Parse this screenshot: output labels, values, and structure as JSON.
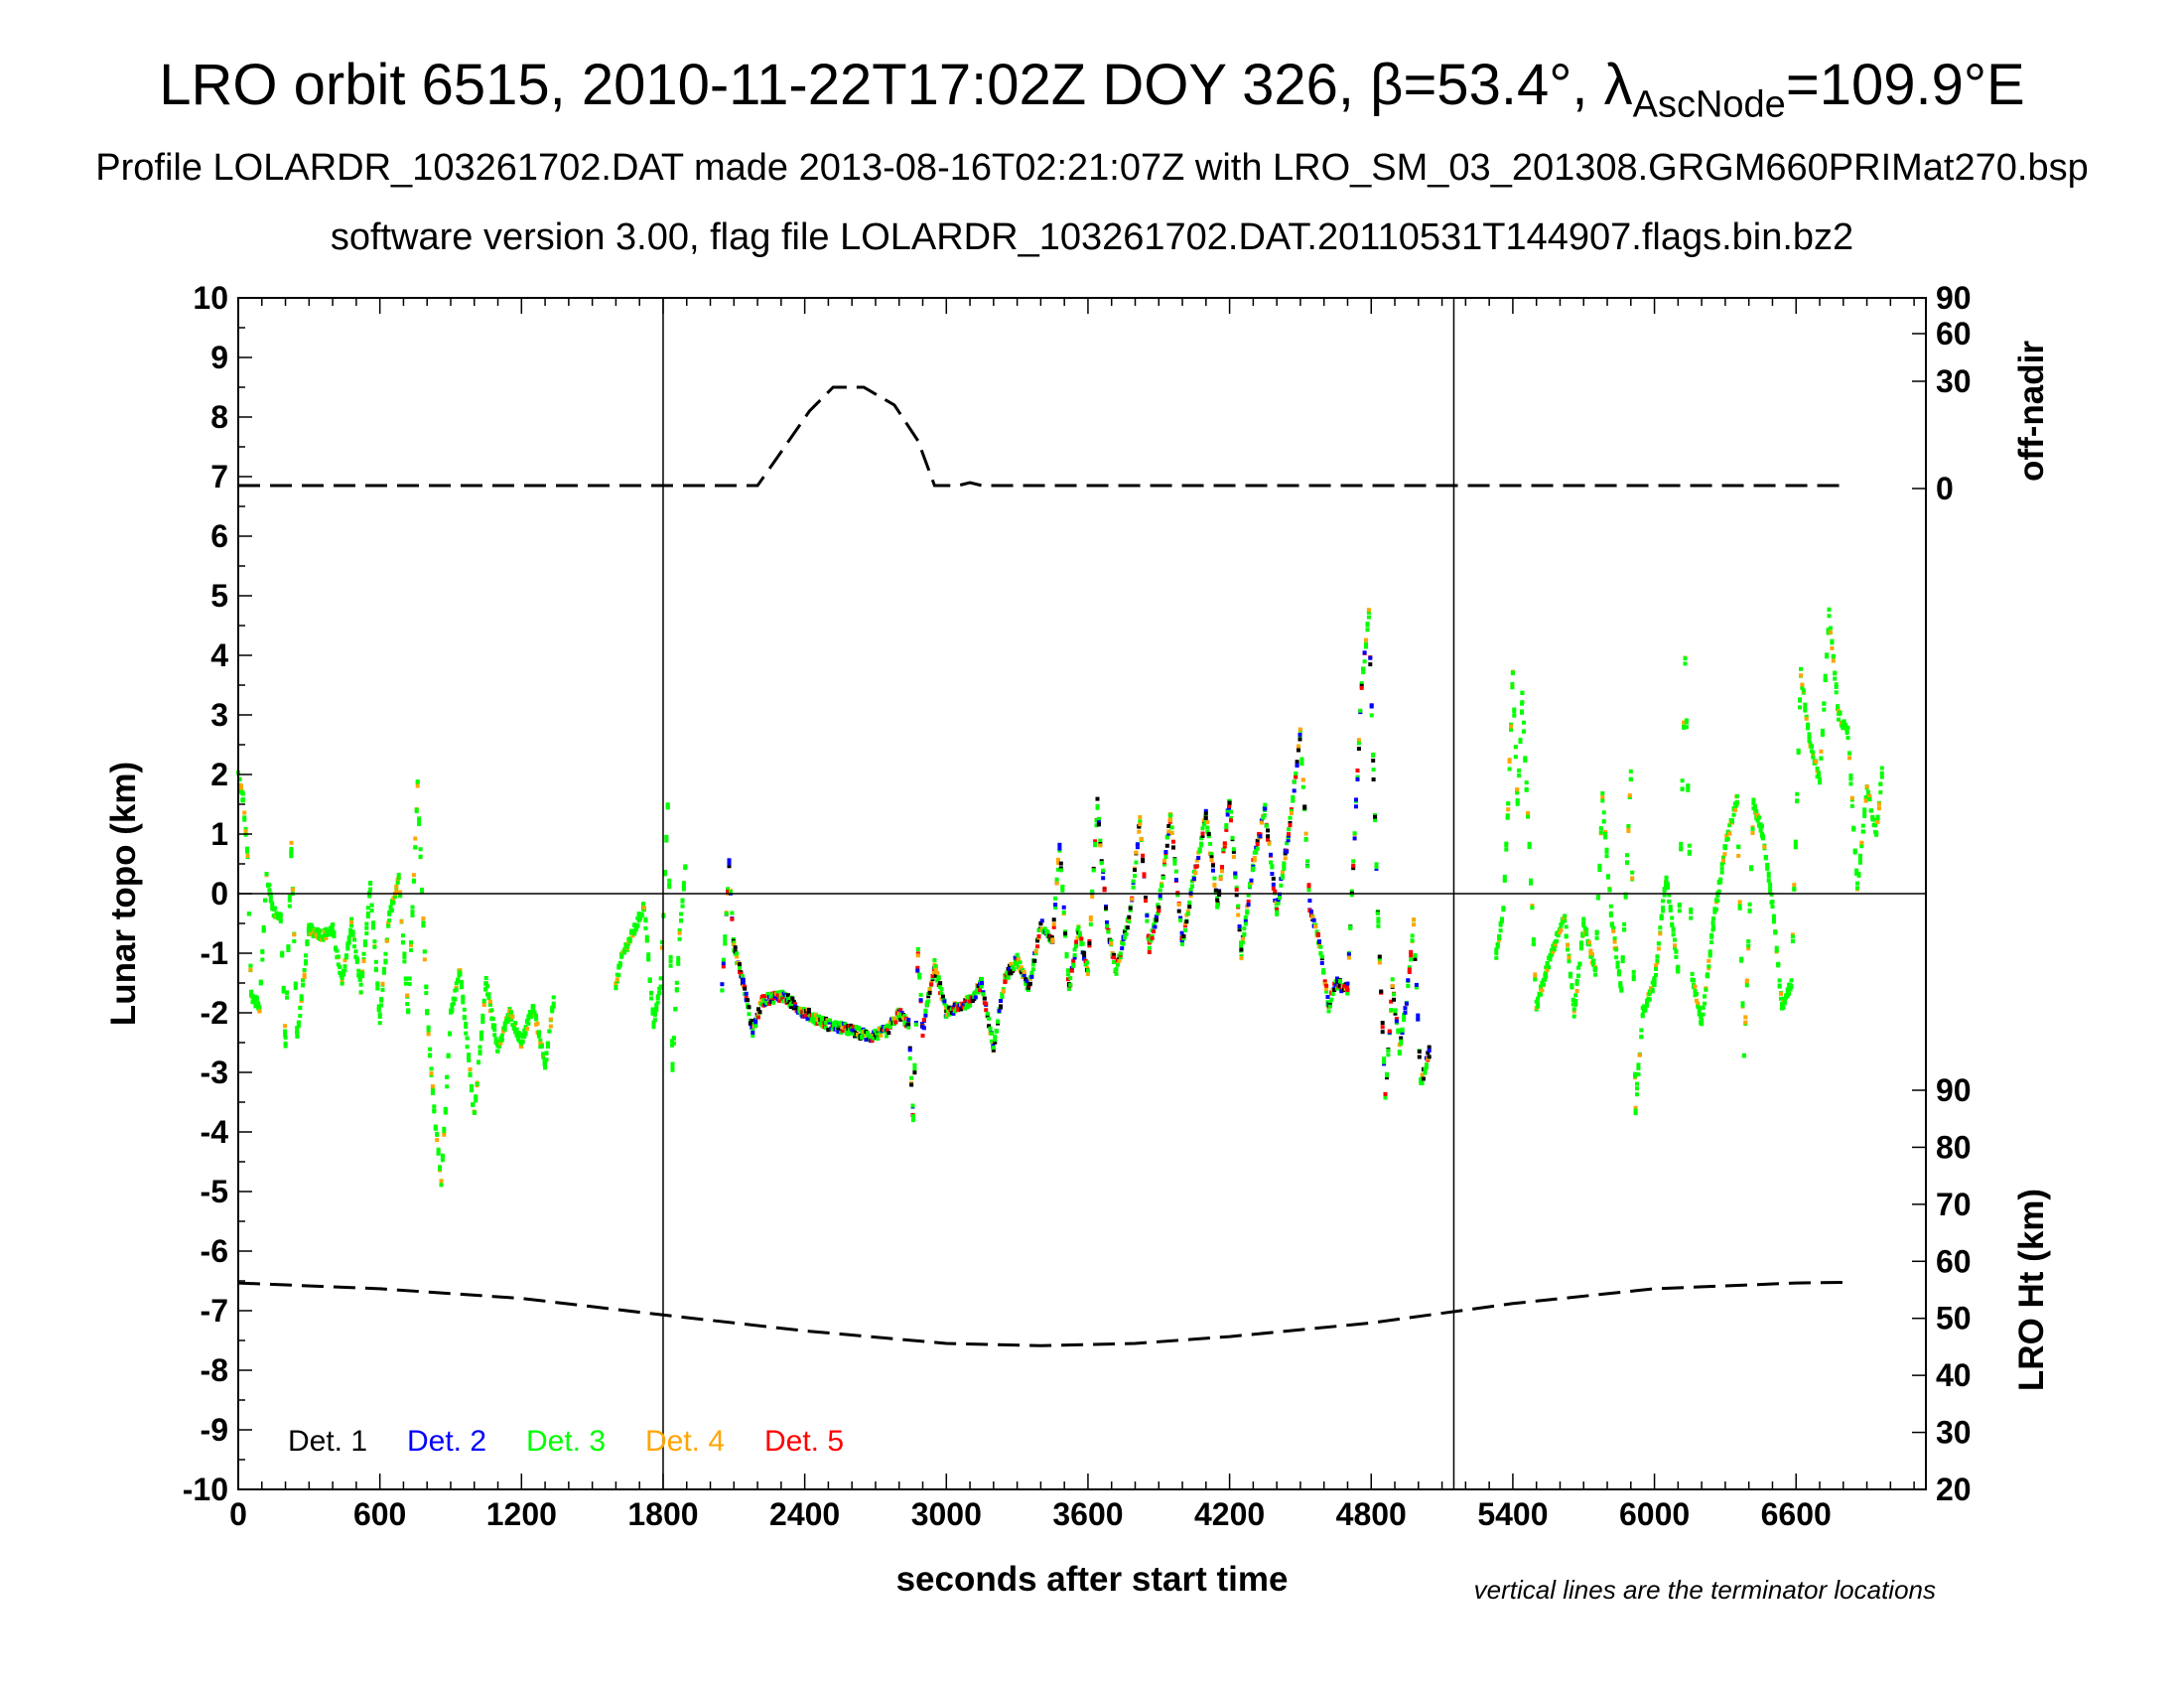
{
  "titles": {
    "line1_prefix": "LRO orbit 6515, 2010-11-22T17:02Z DOY 326, β=53.4°, λ",
    "line1_sub": "AscNode",
    "line1_suffix": "=109.9°E",
    "line2": "Profile LOLARDR_103261702.DAT made 2013-08-16T02:21:07Z with LRO_SM_03_201308.GRGM660PRIMat270.bsp",
    "line3": "software version 3.00, flag file LOLARDR_103261702.DAT.20110531T144907.flags.bin.bz2"
  },
  "chart_data": {
    "type": "scatter",
    "xlabel": "seconds after start time",
    "ylabel": "Lunar topo (km)",
    "xlim": [
      0,
      7150
    ],
    "ylim": [
      -10,
      10
    ],
    "x_ticks": [
      0,
      600,
      1200,
      1800,
      2400,
      3000,
      3600,
      4200,
      4800,
      5400,
      6000,
      6600
    ],
    "y_ticks": [
      10,
      9,
      8,
      7,
      6,
      5,
      4,
      3,
      2,
      1,
      0,
      -1,
      -2,
      -3,
      -4,
      -5,
      -6,
      -7,
      -8,
      -9,
      -10
    ],
    "terminator_lines_x": [
      1800,
      5150
    ],
    "zero_line": true,
    "note": "vertical lines are the terminator locations",
    "colors": {
      "det1": "#000000",
      "det2": "#0000ff",
      "det3": "#00ff00",
      "det4": "#ffa500",
      "det5": "#ff0000",
      "dashed": "#000000"
    },
    "legend": [
      {
        "label": "Det. 1",
        "color": "#000000"
      },
      {
        "label": "Det. 2",
        "color": "#0000ff"
      },
      {
        "label": "Det. 3",
        "color": "#00ff00"
      },
      {
        "label": "Det. 4",
        "color": "#ffa500"
      },
      {
        "label": "Det. 5",
        "color": "#ff0000"
      }
    ],
    "off_nadir_axis": {
      "label": "off-nadir",
      "ticks": [
        {
          "label": "90",
          "topo": 10.0
        },
        {
          "label": "60",
          "topo": 9.4
        },
        {
          "label": "30",
          "topo": 8.6
        },
        {
          "label": "0",
          "topo": 6.8
        }
      ],
      "profile_topo": [
        [
          0,
          6.85
        ],
        [
          2200,
          6.85
        ],
        [
          2280,
          7.3
        ],
        [
          2420,
          8.1
        ],
        [
          2520,
          8.5
        ],
        [
          2650,
          8.5
        ],
        [
          2780,
          8.2
        ],
        [
          2880,
          7.6
        ],
        [
          2950,
          6.85
        ],
        [
          3050,
          6.85
        ],
        [
          3100,
          6.9
        ],
        [
          3150,
          6.85
        ],
        [
          6800,
          6.85
        ]
      ]
    },
    "lro_height_axis": {
      "label": "LRO Ht (km)",
      "range": [
        20,
        90
      ],
      "ticks": [
        90,
        80,
        70,
        60,
        50,
        40,
        30,
        20
      ],
      "profile_km": [
        [
          0,
          56.2
        ],
        [
          600,
          55.2
        ],
        [
          1200,
          53.5
        ],
        [
          1800,
          50.6
        ],
        [
          2400,
          47.8
        ],
        [
          3000,
          45.6
        ],
        [
          3400,
          45.2
        ],
        [
          3800,
          45.6
        ],
        [
          4200,
          46.8
        ],
        [
          4800,
          49.2
        ],
        [
          5400,
          52.6
        ],
        [
          6000,
          55.2
        ],
        [
          6600,
          56.2
        ],
        [
          6800,
          56.3
        ]
      ]
    },
    "topo_series": {
      "sample_dt": 6,
      "segments": [
        {
          "points": [
            [
              0,
              2.0
            ],
            [
              20,
              1.6
            ],
            [
              40,
              0.6
            ],
            [
              55,
              -1.7
            ],
            [
              90,
              -1.9
            ],
            [
              120,
              0.3
            ],
            [
              150,
              -0.3
            ],
            [
              180,
              -0.4
            ],
            [
              200,
              -2.5
            ],
            [
              225,
              0.8
            ],
            [
              250,
              -2.4
            ],
            [
              300,
              -0.6
            ],
            [
              360,
              -0.7
            ],
            [
              400,
              -0.6
            ],
            [
              440,
              -1.5
            ],
            [
              480,
              -0.5
            ],
            [
              520,
              -1.6
            ],
            [
              560,
              0.1
            ],
            [
              600,
              -2.1
            ],
            [
              640,
              -0.4
            ],
            [
              680,
              0.3
            ],
            [
              720,
              -2.0
            ],
            [
              760,
              1.8
            ],
            [
              800,
              -2.0
            ],
            [
              830,
              -3.6
            ],
            [
              860,
              -4.9
            ],
            [
              900,
              -2.0
            ],
            [
              940,
              -1.3
            ],
            [
              1000,
              -3.7
            ],
            [
              1050,
              -1.5
            ],
            [
              1100,
              -2.6
            ],
            [
              1150,
              -2.0
            ],
            [
              1200,
              -2.5
            ],
            [
              1250,
              -1.9
            ],
            [
              1300,
              -2.9
            ],
            [
              1340,
              -1.7
            ]
          ]
        },
        {
          "points": [
            [
              1600,
              -1.5
            ],
            [
              1630,
              -1.0
            ],
            [
              1680,
              -0.6
            ],
            [
              1720,
              -0.2
            ],
            [
              1760,
              -2.2
            ],
            [
              1790,
              -1.5
            ],
            [
              1820,
              1.5
            ],
            [
              1840,
              -2.9
            ],
            [
              1870,
              -0.7
            ],
            [
              1900,
              0.7
            ]
          ]
        },
        {
          "points": [
            [
              2050,
              -1.6
            ],
            [
              2080,
              0.5
            ],
            [
              2100,
              -0.9
            ],
            [
              2140,
              -1.5
            ],
            [
              2180,
              -2.3
            ],
            [
              2220,
              -1.8
            ],
            [
              2300,
              -1.7
            ],
            [
              2400,
              -2.0
            ],
            [
              2500,
              -2.2
            ],
            [
              2600,
              -2.3
            ],
            [
              2680,
              -2.4
            ],
            [
              2750,
              -2.3
            ],
            [
              2800,
              -2.0
            ],
            [
              2840,
              -2.2
            ],
            [
              2860,
              -3.8
            ],
            [
              2880,
              -1.0
            ],
            [
              2900,
              -2.3
            ],
            [
              2950,
              -1.2
            ],
            [
              3000,
              -2.0
            ],
            [
              3050,
              -1.9
            ],
            [
              3100,
              -1.8
            ],
            [
              3150,
              -1.5
            ],
            [
              3200,
              -2.6
            ],
            [
              3250,
              -1.4
            ],
            [
              3300,
              -1.1
            ],
            [
              3350,
              -1.6
            ],
            [
              3400,
              -0.5
            ],
            [
              3450,
              -0.8
            ],
            [
              3480,
              0.8
            ],
            [
              3520,
              -1.6
            ],
            [
              3560,
              -0.6
            ],
            [
              3600,
              -1.3
            ],
            [
              3640,
              1.5
            ],
            [
              3680,
              -0.5
            ],
            [
              3720,
              -1.3
            ],
            [
              3780,
              -0.3
            ],
            [
              3820,
              1.2
            ],
            [
              3860,
              -0.9
            ],
            [
              3900,
              -0.2
            ],
            [
              3950,
              1.3
            ],
            [
              4000,
              -0.8
            ],
            [
              4050,
              0.3
            ],
            [
              4100,
              1.3
            ],
            [
              4150,
              -0.2
            ],
            [
              4200,
              1.6
            ],
            [
              4250,
              -1.0
            ],
            [
              4300,
              0.5
            ],
            [
              4350,
              1.4
            ],
            [
              4400,
              -0.3
            ],
            [
              4450,
              1.0
            ],
            [
              4500,
              2.7
            ],
            [
              4540,
              -0.2
            ],
            [
              4580,
              -0.8
            ],
            [
              4620,
              -1.9
            ],
            [
              4650,
              -1.5
            ],
            [
              4700,
              -1.6
            ],
            [
              4730,
              1.0
            ],
            [
              4760,
              3.5
            ],
            [
              4790,
              4.7
            ],
            [
              4810,
              2.0
            ],
            [
              4830,
              -0.5
            ],
            [
              4860,
              -3.4
            ],
            [
              4890,
              -1.5
            ],
            [
              4920,
              -2.6
            ],
            [
              4950,
              -1.8
            ],
            [
              4980,
              -0.5
            ],
            [
              5010,
              -3.2
            ],
            [
              5050,
              -2.6
            ]
          ]
        },
        {
          "points": [
            [
              5330,
              -1.0
            ],
            [
              5360,
              -0.3
            ],
            [
              5380,
              1.5
            ],
            [
              5400,
              3.7
            ],
            [
              5420,
              1.5
            ],
            [
              5440,
              3.3
            ],
            [
              5470,
              0.8
            ],
            [
              5500,
              -1.9
            ],
            [
              5540,
              -1.3
            ],
            [
              5580,
              -0.8
            ],
            [
              5620,
              -0.4
            ],
            [
              5660,
              -2.0
            ],
            [
              5700,
              -0.5
            ],
            [
              5750,
              -1.3
            ],
            [
              5780,
              1.6
            ],
            [
              5820,
              -0.5
            ],
            [
              5860,
              -1.6
            ],
            [
              5900,
              2.0
            ],
            [
              5920,
              -3.6
            ],
            [
              5950,
              -2.0
            ],
            [
              6000,
              -1.5
            ],
            [
              6050,
              0.3
            ],
            [
              6100,
              -1.3
            ],
            [
              6130,
              3.9
            ],
            [
              6160,
              -1.4
            ],
            [
              6200,
              -2.2
            ],
            [
              6250,
              -0.5
            ],
            [
              6300,
              0.8
            ],
            [
              6350,
              1.6
            ],
            [
              6380,
              -2.8
            ],
            [
              6420,
              1.5
            ],
            [
              6460,
              1.0
            ],
            [
              6500,
              -0.2
            ],
            [
              6540,
              -1.9
            ],
            [
              6580,
              -1.5
            ],
            [
              6620,
              3.7
            ],
            [
              6660,
              2.5
            ],
            [
              6700,
              1.9
            ],
            [
              6740,
              4.7
            ],
            [
              6780,
              3.0
            ],
            [
              6820,
              2.7
            ],
            [
              6860,
              0.1
            ],
            [
              6900,
              1.8
            ],
            [
              6940,
              1.0
            ],
            [
              6970,
              2.3
            ]
          ]
        }
      ]
    }
  }
}
